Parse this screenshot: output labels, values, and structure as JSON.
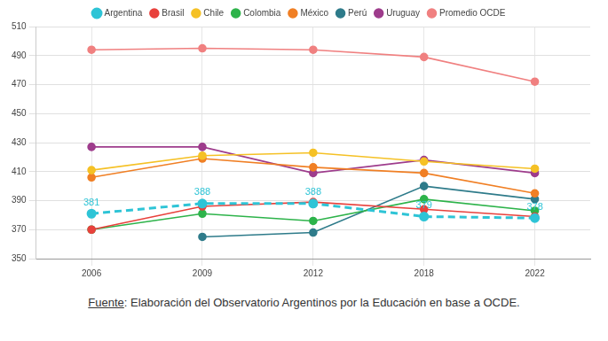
{
  "chart_data": {
    "type": "line",
    "categories": [
      "2006",
      "2009",
      "2012",
      "2018",
      "2022"
    ],
    "series": [
      {
        "name": "Argentina",
        "color": "#2ec4d6",
        "values": [
          381,
          388,
          388,
          379,
          378
        ],
        "line_style": "dashed",
        "marker": "circle",
        "data_labels": true
      },
      {
        "name": "Brasil",
        "color": "#e8413c",
        "values": [
          370,
          386,
          389,
          384,
          379
        ],
        "line_style": "solid",
        "marker": "circle"
      },
      {
        "name": "Chile",
        "color": "#f5c125",
        "values": [
          411,
          421,
          423,
          417,
          412
        ],
        "line_style": "solid",
        "marker": "circle"
      },
      {
        "name": "Colombia",
        "color": "#2db34a",
        "values": [
          370,
          381,
          376,
          391,
          383
        ],
        "line_style": "solid",
        "marker": "circle"
      },
      {
        "name": "México",
        "color": "#f07f24",
        "values": [
          406,
          419,
          413,
          409,
          395
        ],
        "line_style": "solid",
        "marker": "circle"
      },
      {
        "name": "Perú",
        "color": "#2e7b8a",
        "values": [
          null,
          365,
          368,
          400,
          391
        ],
        "line_style": "solid",
        "marker": "circle"
      },
      {
        "name": "Uruguay",
        "color": "#9e3c8c",
        "values": [
          427,
          427,
          409,
          418,
          409
        ],
        "line_style": "solid",
        "marker": "circle"
      },
      {
        "name": "Promedio OCDE",
        "color": "#f08080",
        "values": [
          494,
          495,
          494,
          489,
          472
        ],
        "line_style": "solid",
        "marker": "circle"
      }
    ],
    "ylim": [
      350,
      510
    ],
    "yticks": [
      350,
      370,
      390,
      410,
      430,
      450,
      470,
      490,
      510
    ],
    "grid": true,
    "legend": "top",
    "source": "Fuente: Elaboración del Observatorio Argentinos por la Educación en base a OCDE."
  }
}
